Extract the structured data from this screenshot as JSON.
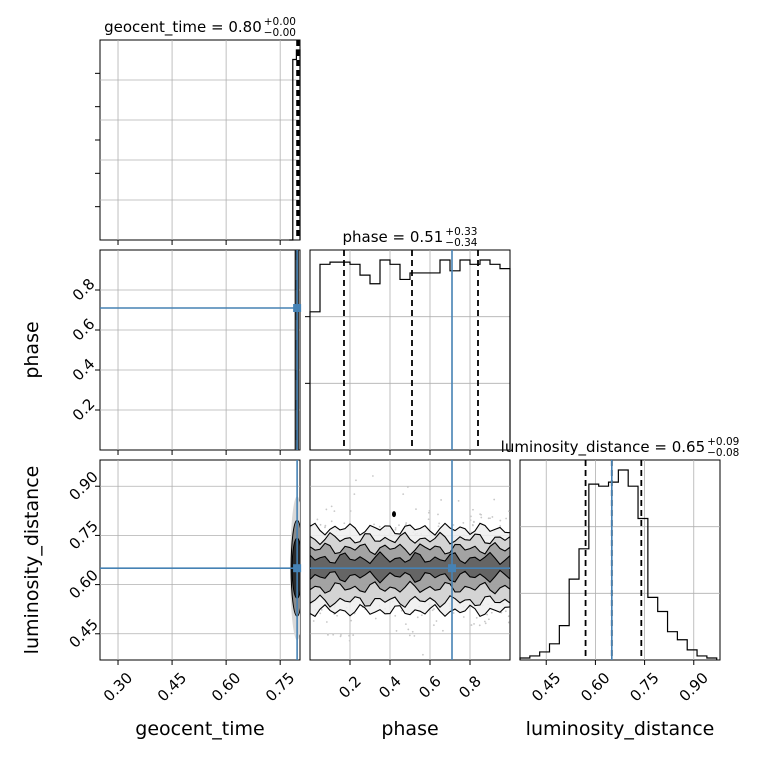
{
  "chart_data": {
    "type": "corner",
    "parameters": [
      "geocent_time",
      "phase",
      "luminosity_distance"
    ],
    "titles": [
      {
        "name": "geocent_time",
        "median": "0.80",
        "plus": "+0.00",
        "minus": "−0.00"
      },
      {
        "name": "phase",
        "median": "0.51",
        "plus": "+0.33",
        "minus": "−0.34"
      },
      {
        "name": "luminosity_distance",
        "median": "0.65",
        "plus": "+0.09",
        "minus": "−0.08"
      }
    ],
    "ranges": {
      "geocent_time": [
        0.25,
        0.805
      ],
      "phase": [
        0.0,
        1.0
      ],
      "luminosity_distance": [
        0.37,
        0.98
      ]
    },
    "ticks": {
      "geocent_time": {
        "values": [
          0.3,
          0.45,
          0.6,
          0.75
        ],
        "labels": [
          "0.30",
          "0.45",
          "0.60",
          "0.75"
        ]
      },
      "phase": {
        "values": [
          0.2,
          0.4,
          0.6,
          0.8
        ],
        "labels": [
          "0.2",
          "0.4",
          "0.6",
          "0.8"
        ]
      },
      "luminosity_distance": {
        "values": [
          0.45,
          0.6,
          0.75,
          0.9
        ],
        "labels": [
          "0.45",
          "0.60",
          "0.75",
          "0.90"
        ]
      }
    },
    "truths": {
      "geocent_time": 0.797,
      "phase": 0.71,
      "luminosity_distance": 0.65
    },
    "quantiles": {
      "geocent_time": [
        0.797,
        0.8,
        0.801
      ],
      "phase": [
        0.17,
        0.51,
        0.84
      ],
      "luminosity_distance": [
        0.57,
        0.65,
        0.74
      ]
    },
    "hist_geocent_time": {
      "bins": [
        0.775,
        0.785,
        0.795,
        0.805
      ],
      "values": [
        0.0,
        0.95,
        1.0
      ]
    },
    "hist_phase": {
      "bins": [
        0.0,
        0.05,
        0.1,
        0.15,
        0.2,
        0.25,
        0.3,
        0.35,
        0.4,
        0.45,
        0.5,
        0.55,
        0.6,
        0.65,
        0.7,
        0.75,
        0.8,
        0.85,
        0.9,
        0.95,
        1.0
      ],
      "values": [
        0.64,
        0.86,
        0.87,
        0.87,
        0.86,
        0.81,
        0.77,
        0.88,
        0.86,
        0.79,
        0.82,
        0.82,
        0.82,
        0.88,
        0.83,
        0.88,
        0.86,
        0.88,
        0.86,
        0.84
      ]
    },
    "hist_luminosity_distance": {
      "bins": [
        0.37,
        0.4,
        0.43,
        0.46,
        0.49,
        0.52,
        0.55,
        0.58,
        0.61,
        0.64,
        0.67,
        0.7,
        0.73,
        0.76,
        0.79,
        0.82,
        0.85,
        0.88,
        0.91,
        0.94,
        0.97
      ],
      "values": [
        0.01,
        0.02,
        0.04,
        0.08,
        0.17,
        0.4,
        0.55,
        0.87,
        0.86,
        0.88,
        0.94,
        0.86,
        0.7,
        0.31,
        0.24,
        0.14,
        0.1,
        0.05,
        0.02,
        0.01
      ]
    },
    "contours_phase_luminosity_distance": {
      "levels": [
        {
          "lo": 0.52,
          "hi": 0.77,
          "shade": "#efefef"
        },
        {
          "lo": 0.55,
          "hi": 0.74,
          "shade": "#cfcfcf"
        },
        {
          "lo": 0.59,
          "hi": 0.71,
          "shade": "#9a9a9a"
        },
        {
          "lo": 0.625,
          "hi": 0.68,
          "shade": "#5a5a5a"
        }
      ]
    },
    "grid": true,
    "colors": {
      "truth": "#4682b4",
      "hist": "#000000",
      "grid": "#b0b0b0"
    }
  }
}
